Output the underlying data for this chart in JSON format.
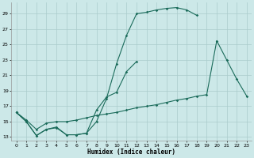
{
  "xlabel": "Humidex (Indice chaleur)",
  "bg_color": "#cce8e8",
  "grid_color": "#aacccc",
  "line_color": "#1a6b5a",
  "xlim": [
    -0.5,
    23.5
  ],
  "ylim": [
    12.5,
    30.5
  ],
  "yticks": [
    13,
    15,
    17,
    19,
    21,
    23,
    25,
    27,
    29
  ],
  "xticks": [
    0,
    1,
    2,
    3,
    4,
    5,
    6,
    7,
    8,
    9,
    10,
    11,
    12,
    13,
    14,
    15,
    16,
    17,
    18,
    19,
    20,
    21,
    22,
    23
  ],
  "line1_y": [
    16.2,
    15.0,
    13.2,
    14.0,
    14.2,
    13.3,
    13.3,
    13.5,
    15.0,
    18.0,
    22.5,
    26.2,
    29.0,
    29.2,
    29.5,
    29.7,
    29.8,
    29.5,
    28.8,
    null,
    null,
    null,
    null,
    null
  ],
  "line2_y": [
    16.2,
    15.0,
    13.2,
    14.0,
    14.3,
    13.3,
    13.3,
    13.5,
    16.5,
    18.2,
    18.8,
    21.5,
    22.8,
    null,
    null,
    null,
    null,
    null,
    null,
    null,
    null,
    null,
    null,
    null
  ],
  "line3_y": [
    16.2,
    15.2,
    14.0,
    14.8,
    15.0,
    15.0,
    15.2,
    15.5,
    15.8,
    16.0,
    16.2,
    16.5,
    16.8,
    17.0,
    17.2,
    17.5,
    17.8,
    18.0,
    18.3,
    18.5,
    25.5,
    23.0,
    20.5,
    18.3
  ]
}
